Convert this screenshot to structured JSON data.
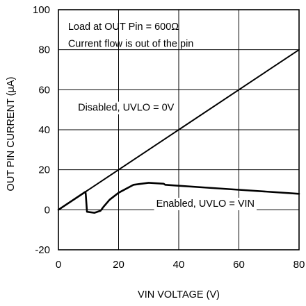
{
  "chart_data": {
    "type": "line",
    "xlabel": "VIN VOLTAGE (V)",
    "ylabel": "OUT PIN CURRENT (μA)",
    "xlim": [
      0,
      80
    ],
    "ylim": [
      -20,
      100
    ],
    "xticks": [
      0,
      20,
      40,
      60,
      80
    ],
    "yticks": [
      -20,
      0,
      20,
      40,
      60,
      80,
      100
    ],
    "grid": true,
    "series": [
      {
        "key": "disabled",
        "x": [
          0,
          80
        ],
        "y": [
          0,
          80
        ],
        "stroke_width": 2
      },
      {
        "key": "enabled",
        "x": [
          0,
          9,
          9.1,
          9.5,
          12,
          14,
          15,
          17,
          20,
          25,
          30,
          35,
          35.5,
          40,
          50,
          60,
          70,
          80
        ],
        "y": [
          0,
          9,
          7.5,
          -1,
          -1.5,
          -0.5,
          1.5,
          5,
          8.5,
          12.5,
          13.5,
          13,
          12.5,
          12,
          11,
          10,
          9,
          8
        ],
        "stroke_width": 2.6
      }
    ],
    "annotations": [
      {
        "key": "load",
        "text": "Load at OUT Pin = 600Ω",
        "x": 3.2,
        "y": 90,
        "bg": false
      },
      {
        "key": "flow",
        "text": "Current flow is out of the pin",
        "x": 3.2,
        "y": 81.5,
        "bg": false
      },
      {
        "key": "disabled",
        "text": "Disabled, UVLO = 0V",
        "x": 6.5,
        "y": 49.5,
        "bg": true
      },
      {
        "key": "enabled",
        "text": "Enabled, UVLO = VIN",
        "x": 32.5,
        "y": 1.5,
        "bg": true
      }
    ]
  }
}
